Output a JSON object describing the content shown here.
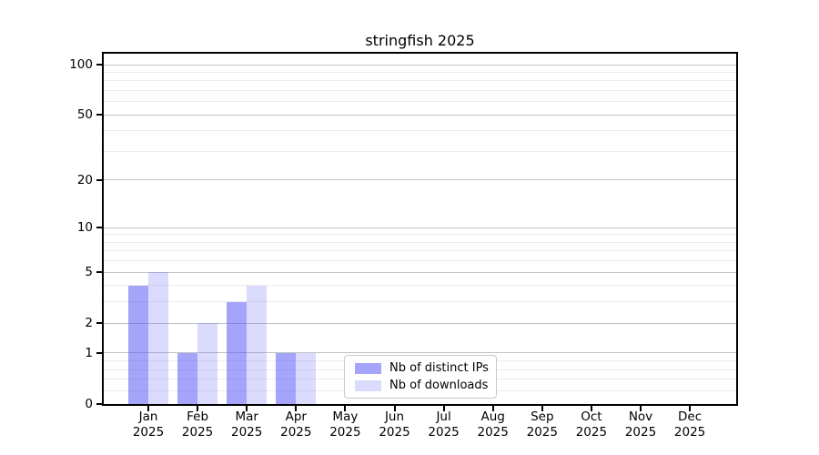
{
  "chart_data": {
    "type": "bar",
    "title": "stringfish 2025",
    "categories": [
      "Jan",
      "Feb",
      "Mar",
      "Apr",
      "May",
      "Jun",
      "Jul",
      "Aug",
      "Sep",
      "Oct",
      "Nov",
      "Dec"
    ],
    "year": "2025",
    "series": [
      {
        "name": "Nb of distinct IPs",
        "color": "rgba(90,90,245,0.55)",
        "values": [
          4,
          1,
          3,
          1,
          0,
          0,
          0,
          0,
          0,
          0,
          0,
          0
        ]
      },
      {
        "name": "Nb of downloads",
        "color": "rgba(90,90,245,0.22)",
        "values": [
          5,
          2,
          4,
          1,
          0,
          0,
          0,
          0,
          0,
          0,
          0,
          0
        ]
      }
    ],
    "xlabel": "",
    "ylabel": "",
    "yscale": "log1p",
    "ylim": [
      0,
      116
    ],
    "y_major_ticks": [
      0,
      1,
      2,
      5,
      10,
      20,
      50,
      100
    ],
    "y_tick_labels": [
      "0",
      "1",
      "2",
      "5",
      "10",
      "20",
      "50",
      "100"
    ],
    "y_minor_gridlines": [
      0.2,
      0.4,
      0.6,
      0.8,
      3,
      4,
      6,
      7,
      8,
      9,
      30,
      40,
      60,
      70,
      80,
      90
    ],
    "grid": "horizontal",
    "legend_position": "lower-center"
  },
  "colors": {
    "background": "#ffffff",
    "axis_frame": "#000000",
    "grid_major": "#c2c2c2",
    "grid_minor": "#ececec",
    "bar_base": "#5a5af5"
  }
}
